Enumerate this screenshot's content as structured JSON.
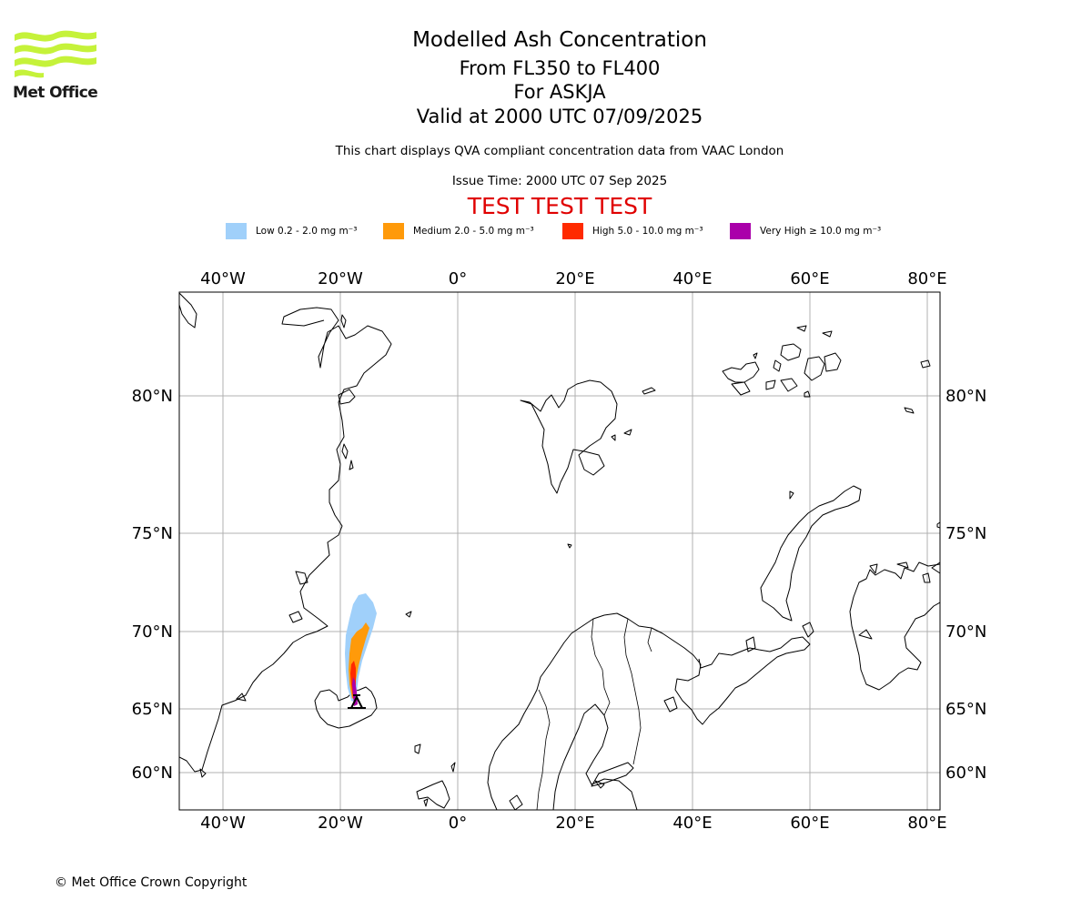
{
  "branding": {
    "org_name": "Met Office",
    "copyright": "© Met Office Crown Copyright"
  },
  "header": {
    "title": "Modelled Ash Concentration",
    "flight_levels": "From FL350 to FL400",
    "volcano": "For ASKJA",
    "valid_time": "Valid at 2000 UTC 07/09/2025",
    "description": "This chart displays QVA compliant concentration data from VAAC London",
    "issue_time": "Issue Time: 2000 UTC 07 Sep 2025",
    "test_banner": "TEST TEST TEST"
  },
  "legend": {
    "items": [
      {
        "label": "Low 0.2 - 2.0 mg m⁻³",
        "color": "#a0d0fa"
      },
      {
        "label": "Medium 2.0 - 5.0 mg m⁻³",
        "color": "#ff9a0a"
      },
      {
        "label": "High 5.0 - 10.0 mg m⁻³",
        "color": "#ff2a00"
      },
      {
        "label": "Very High ≥ 10.0 mg m⁻³",
        "color": "#aa00aa"
      }
    ]
  },
  "map": {
    "lon_labels": [
      "40°W",
      "20°W",
      "0°",
      "20°E",
      "40°E",
      "60°E",
      "80°E"
    ],
    "lat_labels": [
      "80°N",
      "75°N",
      "70°N",
      "65°N",
      "60°N"
    ],
    "volcano_marker": "volcano-triangle-icon",
    "colors": {
      "gridline": "#b0b0b0",
      "coastline": "#000000",
      "frame": "#000000"
    }
  }
}
